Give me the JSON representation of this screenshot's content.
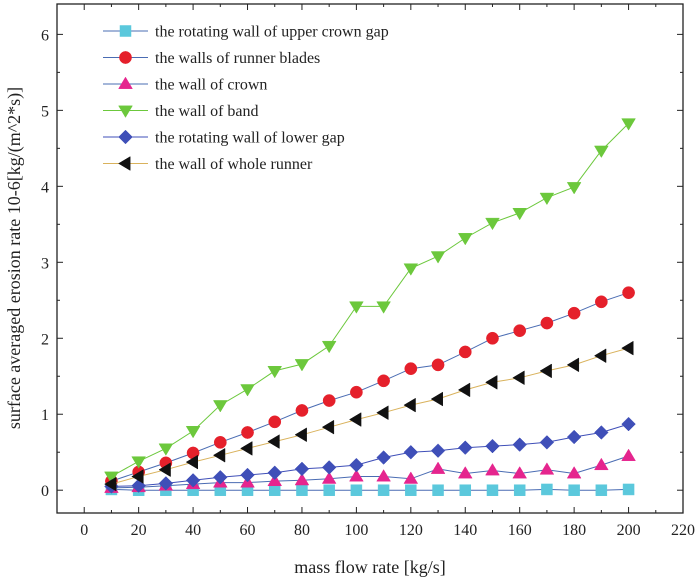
{
  "chart_data": {
    "type": "line",
    "title": "",
    "xlabel": "mass flow rate [kg/s]",
    "ylabel": "surface averaged erosion rate 10-6[kg/(m^2*s)]",
    "xlim": [
      -10,
      220
    ],
    "ylim": [
      -0.3,
      6.4
    ],
    "x_ticks": [
      0,
      20,
      40,
      60,
      80,
      100,
      120,
      140,
      160,
      180,
      200,
      220
    ],
    "y_ticks": [
      0,
      1,
      2,
      3,
      4,
      5,
      6
    ],
    "grid": false,
    "legend_position": "top-left",
    "x": [
      10,
      20,
      30,
      40,
      50,
      60,
      70,
      80,
      90,
      100,
      110,
      120,
      130,
      140,
      150,
      160,
      170,
      180,
      190,
      200
    ],
    "series": [
      {
        "name": "the rotating wall of upper crown gap",
        "marker": "square",
        "color": "#5BC8DC",
        "line_color": "#4A6CB3",
        "values": [
          0.01,
          0.0,
          0.0,
          0.0,
          0.0,
          0.0,
          0.0,
          0.0,
          0.0,
          0.0,
          0.0,
          0.0,
          0.0,
          0.0,
          0.0,
          0.0,
          0.01,
          0.0,
          0.0,
          0.01
        ]
      },
      {
        "name": "the walls of runner blades",
        "marker": "circle",
        "color": "#E5202B",
        "line_color": "#4A6CB3",
        "values": [
          0.12,
          0.24,
          0.36,
          0.49,
          0.63,
          0.76,
          0.9,
          1.05,
          1.18,
          1.29,
          1.44,
          1.6,
          1.65,
          1.82,
          2.0,
          2.1,
          2.2,
          2.33,
          2.48,
          2.6
        ]
      },
      {
        "name": "the wall of crown",
        "marker": "triangle-up",
        "color": "#E5258E",
        "line_color": "#4A6CB3",
        "values": [
          0.03,
          0.04,
          0.06,
          0.08,
          0.1,
          0.1,
          0.12,
          0.13,
          0.15,
          0.18,
          0.18,
          0.15,
          0.28,
          0.22,
          0.26,
          0.22,
          0.27,
          0.22,
          0.33,
          0.45
        ]
      },
      {
        "name": "the wall of band",
        "marker": "triangle-down",
        "color": "#6CC83C",
        "line_color": "#6CC83C",
        "values": [
          0.18,
          0.38,
          0.55,
          0.78,
          1.12,
          1.33,
          1.57,
          1.66,
          1.9,
          2.42,
          2.42,
          2.92,
          3.08,
          3.32,
          3.52,
          3.65,
          3.85,
          3.99,
          4.47,
          4.83
        ]
      },
      {
        "name": "the rotating wall of lower gap",
        "marker": "diamond",
        "color": "#3F4FB8",
        "line_color": "#3F4FB8",
        "values": [
          0.05,
          0.06,
          0.09,
          0.13,
          0.17,
          0.2,
          0.23,
          0.28,
          0.3,
          0.33,
          0.43,
          0.5,
          0.52,
          0.56,
          0.58,
          0.6,
          0.63,
          0.7,
          0.76,
          0.87
        ]
      },
      {
        "name": "the wall of whole runner",
        "marker": "triangle-left",
        "color": "#111111",
        "line_color": "#D9B25C",
        "values": [
          0.08,
          0.18,
          0.27,
          0.37,
          0.46,
          0.55,
          0.64,
          0.73,
          0.83,
          0.93,
          1.02,
          1.12,
          1.2,
          1.32,
          1.42,
          1.48,
          1.57,
          1.65,
          1.77,
          1.87
        ]
      }
    ]
  }
}
